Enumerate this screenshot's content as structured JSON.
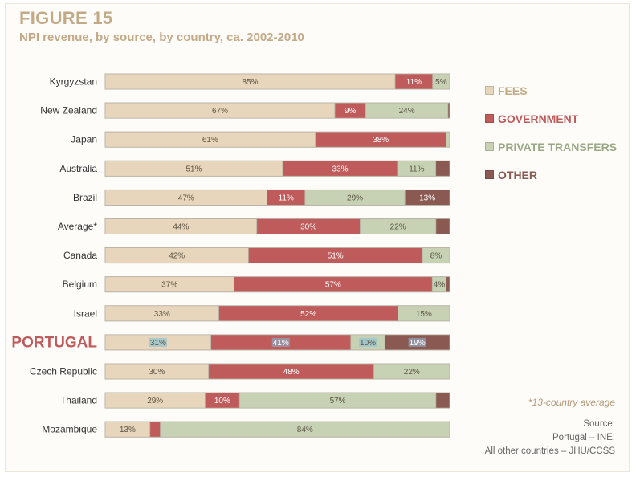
{
  "figure": {
    "label": "FIGURE 15",
    "title": "NPI revenue, by source, by country, ca. 2002-2010"
  },
  "chart_data": {
    "type": "bar",
    "orientation": "horizontal",
    "stacked": true,
    "percent_stacked": true,
    "categories": [
      "Kyrgyzstan",
      "New Zealand",
      "Japan",
      "Australia",
      "Brazil",
      "Average*",
      "Canada",
      "Belgium",
      "Israel",
      "PORTUGAL",
      "Czech Republic",
      "Thailand",
      "Mozambique"
    ],
    "highlight_category": "PORTUGAL",
    "series": [
      {
        "name": "FEES",
        "color": "#e7d6bb",
        "text_color": "#c4a987",
        "values": [
          85,
          67,
          61,
          51,
          47,
          44,
          42,
          37,
          33,
          31,
          30,
          29,
          13
        ],
        "labels": [
          "85%",
          "67%",
          "61%",
          "51%",
          "47%",
          "44%",
          "42%",
          "37%",
          "33%",
          "31%",
          "30%",
          "29%",
          "13%"
        ]
      },
      {
        "name": "GOVERNMENT",
        "color": "#c05b5b",
        "text_color": "#c05b5b",
        "values": [
          11,
          9,
          38,
          33,
          11,
          30,
          51,
          57,
          52,
          41,
          48,
          10,
          3
        ],
        "labels": [
          "11%",
          "9%",
          "38%",
          "33%",
          "11%",
          "30%",
          "51%",
          "57%",
          "52%",
          "41%",
          "48%",
          "10%",
          ""
        ]
      },
      {
        "name": "PRIVATE TRANSFERS",
        "color": "#c6d2b3",
        "text_color": "#9aa985",
        "values": [
          5,
          24,
          1,
          11,
          29,
          22,
          8,
          4,
          15,
          10,
          22,
          57,
          84
        ],
        "labels": [
          "5%",
          "24%",
          "",
          "11%",
          "29%",
          "22%",
          "8%",
          "4%",
          "15%",
          "10%",
          "22%",
          "57%",
          "84%"
        ]
      },
      {
        "name": "OTHER",
        "color": "#8a5a52",
        "text_color": "#8a5a52",
        "values": [
          0,
          0.5,
          0,
          4,
          13,
          4,
          0,
          1,
          0,
          19,
          0,
          4,
          0
        ],
        "labels": [
          "",
          "",
          "",
          "",
          "13%",
          "",
          "",
          "",
          "",
          "19%",
          "",
          "",
          ""
        ]
      }
    ],
    "xlim": [
      0,
      100
    ],
    "grid": false,
    "legend_position": "right"
  },
  "notes": {
    "footnote": "*13-country average",
    "source_lines": [
      "Source:",
      "Portugal – INE;",
      "All other countries – JHU/CCSS"
    ]
  }
}
